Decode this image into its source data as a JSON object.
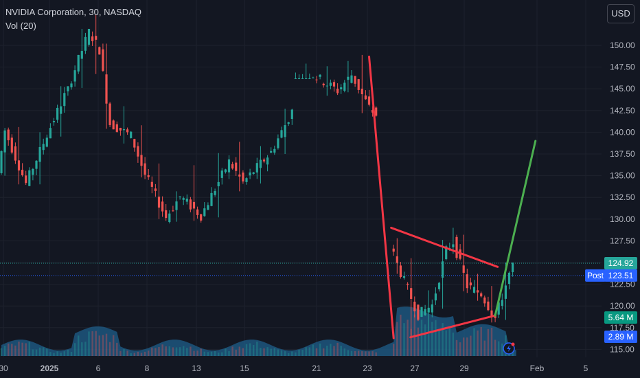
{
  "header": {
    "symbol_title": "NVIDIA Corporation, 30, NASDAQ",
    "indicator": "Vol (20)"
  },
  "currency_button": "USD",
  "badges": {
    "last_price": "124.92",
    "post_label": "Post",
    "post_price": "123.51",
    "volume_1": "5.64 M",
    "volume_2": "2.89 M"
  },
  "colors": {
    "background": "#131722",
    "up": "#26a69a",
    "down": "#ef5350",
    "annotation_red": "#f23645",
    "annotation_green": "#4caf50",
    "post_line": "#2962ff",
    "volume_area": "#1f5f8b"
  },
  "chart_data": {
    "type": "candlestick",
    "y_axis": {
      "range": [
        114.5,
        153.5
      ],
      "ticks": [
        "150.00",
        "147.50",
        "145.00",
        "142.50",
        "140.00",
        "137.50",
        "135.00",
        "132.50",
        "130.00",
        "127.50",
        "125.00",
        "122.50",
        "120.00",
        "117.50",
        "115.00"
      ]
    },
    "x_axis": {
      "labels": [
        "30",
        "2025",
        "6",
        "8",
        "13",
        "15",
        "21",
        "23",
        "27",
        "29",
        "Feb",
        "5"
      ]
    },
    "price_segments": [
      {
        "from": 0,
        "to": 2,
        "start": 135.3,
        "end": 140.2,
        "low": 134.8,
        "high": 140.5
      },
      {
        "from": 2,
        "to": 8,
        "start": 140.2,
        "end": 134.1,
        "low": 133.8,
        "high": 140.6
      },
      {
        "from": 8,
        "to": 14,
        "start": 134.1,
        "end": 139.7,
        "low": 133.8,
        "high": 140.0
      },
      {
        "from": 14,
        "to": 20,
        "start": 139.7,
        "end": 145.1,
        "low": 139.3,
        "high": 145.3
      },
      {
        "from": 20,
        "to": 26,
        "start": 145.1,
        "end": 151.6,
        "low": 144.9,
        "high": 151.9
      },
      {
        "from": 26,
        "to": 29,
        "start": 151.6,
        "end": 149.5,
        "low": 146.5,
        "high": 153.5
      },
      {
        "from": 29,
        "to": 32,
        "start": 149.5,
        "end": 141.0,
        "low": 140.2,
        "high": 150.2
      },
      {
        "from": 32,
        "to": 38,
        "start": 141.0,
        "end": 139.6,
        "low": 138.5,
        "high": 143.0
      },
      {
        "from": 38,
        "to": 42,
        "start": 139.6,
        "end": 135.1,
        "low": 134.6,
        "high": 140.8
      },
      {
        "from": 42,
        "to": 48,
        "start": 135.1,
        "end": 130.2,
        "low": 129.8,
        "high": 136.4
      },
      {
        "from": 48,
        "to": 52,
        "start": 130.2,
        "end": 132.6,
        "low": 129.5,
        "high": 133.2
      },
      {
        "from": 52,
        "to": 58,
        "start": 132.6,
        "end": 130.4,
        "low": 129.6,
        "high": 136.2
      },
      {
        "from": 58,
        "to": 66,
        "start": 130.4,
        "end": 136.6,
        "low": 130.0,
        "high": 137.6
      },
      {
        "from": 66,
        "to": 70,
        "start": 136.6,
        "end": 134.2,
        "low": 133.0,
        "high": 138.9
      },
      {
        "from": 70,
        "to": 78,
        "start": 134.2,
        "end": 137.7,
        "low": 133.9,
        "high": 138.4
      },
      {
        "from": 78,
        "to": 84,
        "start": 137.7,
        "end": 142.4,
        "low": 137.3,
        "high": 142.7
      },
      {
        "from": 84,
        "to": 90,
        "start": 142.4,
        "end": 146.6,
        "low": 146.2,
        "high": 147.9
      },
      {
        "from": 90,
        "to": 97,
        "start": 146.6,
        "end": 144.8,
        "low": 144.0,
        "high": 147.6
      },
      {
        "from": 97,
        "to": 101,
        "start": 144.8,
        "end": 146.6,
        "low": 144.4,
        "high": 148.2
      },
      {
        "from": 101,
        "to": 106,
        "start": 146.6,
        "end": 142.8,
        "low": 142.0,
        "high": 148.9
      },
      {
        "from": 106,
        "to": 108,
        "start": 142.8,
        "end": 142.0,
        "low": 141.8,
        "high": 143.0
      },
      {
        "from": 112,
        "to": 114,
        "start": 127.0,
        "end": 124.8,
        "low": 123.5,
        "high": 127.8
      },
      {
        "from": 114,
        "to": 120,
        "start": 124.8,
        "end": 119.0,
        "low": 116.3,
        "high": 125.5
      },
      {
        "from": 120,
        "to": 124,
        "start": 119.0,
        "end": 120.1,
        "low": 116.7,
        "high": 121.8
      },
      {
        "from": 124,
        "to": 128,
        "start": 120.1,
        "end": 126.4,
        "low": 119.5,
        "high": 127.6
      },
      {
        "from": 128,
        "to": 130,
        "start": 126.4,
        "end": 127.4,
        "low": 125.9,
        "high": 129.0
      },
      {
        "from": 130,
        "to": 134,
        "start": 127.4,
        "end": 122.3,
        "low": 121.5,
        "high": 128.2
      },
      {
        "from": 134,
        "to": 138,
        "start": 122.3,
        "end": 121.4,
        "low": 120.4,
        "high": 123.7
      },
      {
        "from": 138,
        "to": 142,
        "start": 121.4,
        "end": 118.6,
        "low": 117.9,
        "high": 122.3
      },
      {
        "from": 142,
        "to": 147,
        "start": 118.6,
        "end": 124.9,
        "low": 118.2,
        "high": 125.0
      }
    ],
    "annotations": [
      {
        "color": "red",
        "from": [
          105,
          148.7
        ],
        "to": [
          112,
          116.3
        ]
      },
      {
        "color": "red",
        "from": [
          111.3,
          129.0
        ],
        "to": [
          141.7,
          124.5
        ]
      },
      {
        "color": "red",
        "from": [
          116.8,
          116.4
        ],
        "to": [
          141.0,
          118.9
        ]
      },
      {
        "color": "green",
        "from": [
          141.0,
          118.9
        ],
        "to": [
          152.5,
          139.0
        ]
      }
    ],
    "last_price": 124.92,
    "post_price": 123.51
  }
}
